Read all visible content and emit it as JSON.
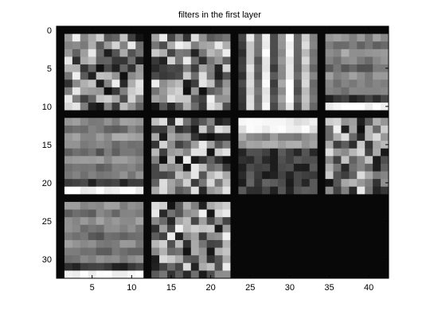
{
  "chart_data": {
    "type": "heatmap",
    "title": "filters in the first layer",
    "xlabel": "",
    "ylabel": "",
    "colormap": "gray",
    "xlim": [
      0.5,
      42.5
    ],
    "ylim": [
      32.5,
      -0.5
    ],
    "x_ticks": [
      5,
      10,
      15,
      20,
      25,
      30,
      35,
      40
    ],
    "y_ticks": [
      0,
      5,
      10,
      15,
      20,
      25,
      30
    ],
    "grid": false,
    "grid_layout": {
      "rows": 3,
      "cols": 4,
      "tile_size": 10,
      "tile_gap": 1
    },
    "filters_shown": 10,
    "background_value": 0.03
  }
}
